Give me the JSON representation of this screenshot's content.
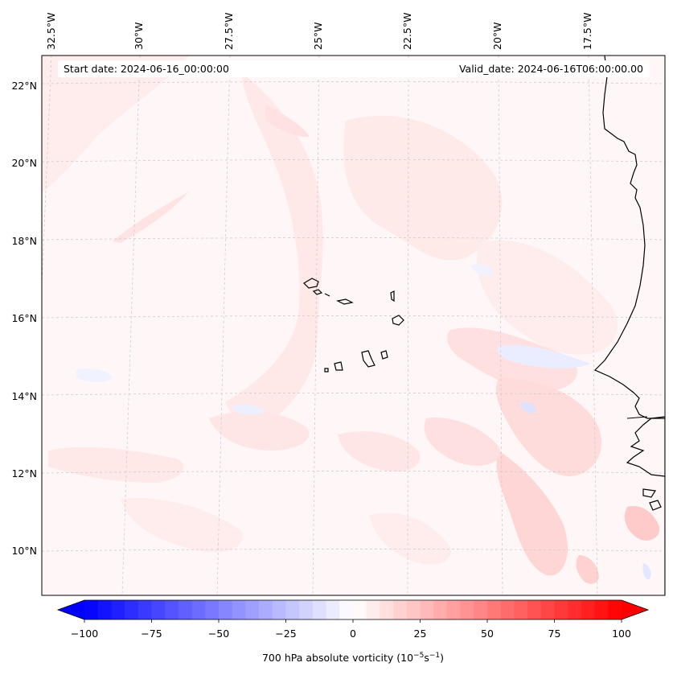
{
  "map": {
    "start_label": "Start date: 2024-06-16_00:00:00",
    "valid_label": "Valid_date: 2024-06-16T06:00:00.00",
    "lon_labels": [
      "32.5°W",
      "30°W",
      "27.5°W",
      "25°W",
      "22.5°W",
      "20°W",
      "17.5°W"
    ],
    "lat_labels": [
      "22°N",
      "20°N",
      "18°N",
      "16°N",
      "14°N",
      "12°N",
      "10°N"
    ],
    "colors": {
      "background": "#fff7f7",
      "light_red": "#ffe6e6",
      "mid_red": "#ffcfcf",
      "light_blue": "#f2f4ff",
      "coast": "#000000",
      "grid": "#c8c8c8"
    }
  },
  "colorbar": {
    "ticks": [
      "−100",
      "−75",
      "−50",
      "−25",
      "0",
      "25",
      "50",
      "75",
      "100"
    ],
    "label": "700 hPa absolute vorticity (10",
    "label_sup1": "−5",
    "label_mid": "s",
    "label_sup2": "−1",
    "label_end": ")",
    "vmin": -100,
    "vmax": 100,
    "step": 5
  }
}
